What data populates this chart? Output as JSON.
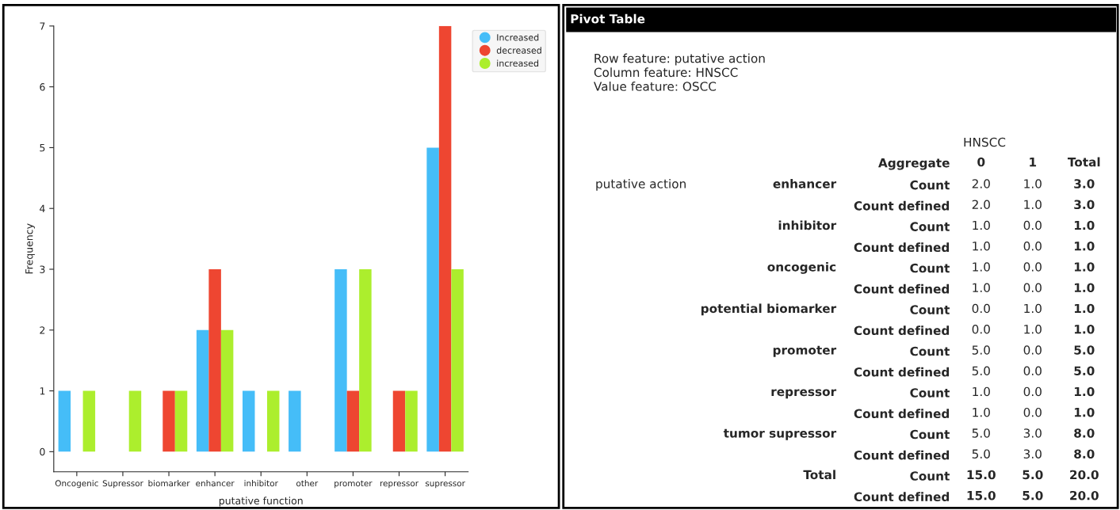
{
  "chart_data": [
    {
      "type": "bar",
      "categories": [
        "Oncogenic",
        "Supressor",
        "biomarker",
        "enhancer",
        "inhibitor",
        "other",
        "promoter",
        "repressor",
        "supressor"
      ],
      "series": [
        {
          "name": "Increased",
          "color": "#45bdf8",
          "values": [
            1,
            0,
            0,
            2,
            1,
            1,
            3,
            0,
            5
          ]
        },
        {
          "name": "decreased",
          "color": "#ee4631",
          "values": [
            0,
            0,
            1,
            3,
            0,
            0,
            1,
            1,
            7
          ]
        },
        {
          "name": "increased",
          "color": "#acee2d",
          "values": [
            1,
            1,
            1,
            2,
            1,
            0,
            3,
            1,
            3
          ]
        }
      ],
      "xlabel": "putative function",
      "ylabel": "Frequency",
      "ylim": [
        -0.33,
        7
      ],
      "yticks": [
        0,
        1,
        2,
        3,
        4,
        5,
        6,
        7
      ],
      "legend": "top right"
    },
    {
      "type": "other",
      "title": "Pivot Table",
      "subtitle": "Row feature: putative action\nColumn feature: HNSCC\nValue feature: OSCC",
      "categories": [
        "0",
        "1",
        "Total"
      ],
      "y_categories": [
        "Count",
        "Count defined",
        "Count",
        "Count defined",
        "Count",
        "Count defined",
        "Count",
        "Count defined",
        "Count",
        "Count defined",
        "Count",
        "Count defined",
        "Count",
        "Count defined",
        "Count",
        "Count defined"
      ],
      "y2_categories": [
        "enhancer",
        null,
        "inhibitor",
        null,
        "oncogenic",
        null,
        "potential biomarker",
        null,
        "promoter",
        null,
        "repressor",
        null,
        "tumor supressor",
        null,
        "Total",
        null
      ],
      "cell_labels": [
        [
          "2.0",
          "1.0",
          "3.0"
        ],
        [
          "2.0",
          "1.0",
          "3.0"
        ],
        [
          "1.0",
          "0.0",
          "1.0"
        ],
        [
          "1.0",
          "0.0",
          "1.0"
        ],
        [
          "1.0",
          "0.0",
          "1.0"
        ],
        [
          "1.0",
          "0.0",
          "1.0"
        ],
        [
          "0.0",
          "1.0",
          "1.0"
        ],
        [
          "0.0",
          "1.0",
          "1.0"
        ],
        [
          "5.0",
          "0.0",
          "5.0"
        ],
        [
          "5.0",
          "0.0",
          "5.0"
        ],
        [
          "1.0",
          "0.0",
          "1.0"
        ],
        [
          "1.0",
          "0.0",
          "1.0"
        ],
        [
          "5.0",
          "3.0",
          "8.0"
        ],
        [
          "5.0",
          "3.0",
          "8.0"
        ],
        [
          "15.0",
          "5.0",
          "20.0"
        ],
        [
          "15.0",
          "5.0",
          "20.0"
        ]
      ],
      "annotations": [
        "HNSCC",
        "Aggregate",
        "putative action"
      ]
    }
  ]
}
